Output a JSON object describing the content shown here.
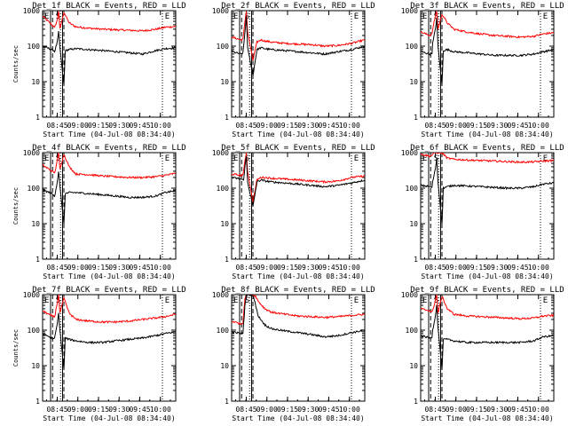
{
  "chart_data": [
    {
      "type": "line",
      "title": "Det_1f BLACK = Events, RED = LLD",
      "ylabel": "Counts/sec",
      "xlabel": "Start Time (04-Jul-08 08:34:40)",
      "yscale": "log",
      "ylim": [
        1,
        1000
      ],
      "y_tick_labels": [
        "1",
        "10",
        "100",
        "1000"
      ],
      "x_tick_labels": [
        "08:45",
        "09:00",
        "09:15",
        "09:30",
        "09:45",
        "10:00"
      ],
      "markers": [
        "E",
        "S",
        "E"
      ],
      "series": [
        {
          "name": "RED",
          "color": "#ff0000",
          "x": [
            0,
            0.07,
            0.085,
            0.09,
            0.11,
            0.12,
            0.13,
            0.16,
            0.2,
            0.25,
            0.35,
            0.45,
            0.55,
            0.65,
            0.75,
            0.85,
            0.92,
            1.0
          ],
          "y": [
            700,
            400,
            350,
            330,
            550,
            1000,
            300,
            900,
            450,
            350,
            320,
            300,
            290,
            280,
            270,
            300,
            340,
            360
          ]
        },
        {
          "name": "BLACK",
          "color": "#000000",
          "x": [
            0,
            0.07,
            0.085,
            0.09,
            0.11,
            0.12,
            0.13,
            0.16,
            0.17,
            0.2,
            0.25,
            0.35,
            0.45,
            0.55,
            0.65,
            0.75,
            0.85,
            0.92,
            1.0
          ],
          "y": [
            100,
            80,
            75,
            70,
            130,
            250,
            90,
            8,
            75,
            80,
            85,
            80,
            75,
            70,
            65,
            60,
            75,
            85,
            90
          ]
        }
      ]
    },
    {
      "type": "line",
      "title": "Det_2f BLACK = Events, RED = LLD",
      "ylabel": "",
      "xlabel": "Start Time (04-Jul-08 08:34:40)",
      "yscale": "log",
      "ylim": [
        1,
        1000
      ],
      "y_tick_labels": [
        "1",
        "10",
        "100",
        "1000"
      ],
      "x_tick_labels": [
        "08:45",
        "09:00",
        "09:15",
        "09:30",
        "09:45",
        "10:00"
      ],
      "markers": [
        "E",
        "S",
        "E"
      ],
      "series": [
        {
          "name": "RED",
          "color": "#ff0000",
          "x": [
            0,
            0.07,
            0.085,
            0.09,
            0.1,
            0.11,
            0.12,
            0.16,
            0.19,
            0.22,
            0.25,
            0.3,
            0.4,
            0.5,
            0.6,
            0.7,
            0.8,
            0.9,
            1.0
          ],
          "y": [
            180,
            150,
            160,
            220,
            500,
            1000,
            250,
            40,
            130,
            150,
            140,
            130,
            120,
            115,
            110,
            100,
            105,
            120,
            150
          ]
        },
        {
          "name": "BLACK",
          "color": "#000000",
          "x": [
            0,
            0.07,
            0.085,
            0.09,
            0.1,
            0.11,
            0.12,
            0.16,
            0.19,
            0.22,
            0.25,
            0.3,
            0.4,
            0.5,
            0.6,
            0.7,
            0.8,
            0.9,
            1.0
          ],
          "y": [
            70,
            60,
            65,
            100,
            250,
            700,
            90,
            15,
            80,
            90,
            85,
            80,
            75,
            70,
            65,
            60,
            70,
            80,
            100
          ]
        }
      ]
    },
    {
      "type": "line",
      "title": "Det_3f BLACK = Events, RED = LLD",
      "ylabel": "",
      "xlabel": "Start Time (04-Jul-08 08:34:40)",
      "yscale": "log",
      "ylim": [
        1,
        1000
      ],
      "y_tick_labels": [
        "1",
        "10",
        "100",
        "1000"
      ],
      "x_tick_labels": [
        "08:45",
        "09:00",
        "09:15",
        "09:30",
        "09:45",
        "10:00"
      ],
      "markers": [
        "E",
        "S",
        "E"
      ],
      "series": [
        {
          "name": "RED",
          "color": "#ff0000",
          "x": [
            0,
            0.07,
            0.085,
            0.09,
            0.11,
            0.12,
            0.13,
            0.16,
            0.2,
            0.25,
            0.35,
            0.45,
            0.55,
            0.65,
            0.75,
            0.85,
            0.92,
            1.0
          ],
          "y": [
            250,
            200,
            220,
            300,
            700,
            1000,
            300,
            800,
            450,
            300,
            250,
            220,
            200,
            190,
            180,
            190,
            220,
            240
          ]
        },
        {
          "name": "BLACK",
          "color": "#000000",
          "x": [
            0,
            0.07,
            0.085,
            0.09,
            0.11,
            0.12,
            0.13,
            0.16,
            0.17,
            0.2,
            0.25,
            0.35,
            0.45,
            0.55,
            0.65,
            0.75,
            0.85,
            0.92,
            1.0
          ],
          "y": [
            70,
            60,
            65,
            120,
            300,
            600,
            100,
            8,
            75,
            80,
            70,
            65,
            60,
            55,
            55,
            55,
            60,
            70,
            80
          ]
        }
      ]
    },
    {
      "type": "line",
      "title": "Det_4f BLACK = Events, RED = LLD",
      "ylabel": "Counts/sec",
      "xlabel": "Start Time (04-Jul-08 08:34:40)",
      "yscale": "log",
      "ylim": [
        1,
        1000
      ],
      "y_tick_labels": [
        "1",
        "10",
        "100",
        "1000"
      ],
      "x_tick_labels": [
        "08:45",
        "09:00",
        "09:15",
        "09:30",
        "09:45",
        "10:00"
      ],
      "markers": [
        "E",
        "S",
        "E"
      ],
      "series": [
        {
          "name": "RED",
          "color": "#ff0000",
          "x": [
            0,
            0.07,
            0.085,
            0.09,
            0.11,
            0.12,
            0.13,
            0.16,
            0.2,
            0.25,
            0.35,
            0.45,
            0.55,
            0.65,
            0.75,
            0.85,
            0.92,
            1.0
          ],
          "y": [
            450,
            300,
            280,
            260,
            600,
            1000,
            350,
            900,
            400,
            250,
            240,
            220,
            210,
            200,
            200,
            210,
            230,
            260
          ]
        },
        {
          "name": "BLACK",
          "color": "#000000",
          "x": [
            0,
            0.07,
            0.085,
            0.09,
            0.11,
            0.12,
            0.13,
            0.16,
            0.17,
            0.2,
            0.25,
            0.35,
            0.45,
            0.55,
            0.65,
            0.75,
            0.85,
            0.92,
            1.0
          ],
          "y": [
            90,
            70,
            60,
            60,
            150,
            300,
            110,
            10,
            70,
            75,
            75,
            70,
            65,
            60,
            55,
            55,
            60,
            75,
            85
          ]
        }
      ]
    },
    {
      "type": "line",
      "title": "Det_5f BLACK = Events, RED = LLD",
      "ylabel": "",
      "xlabel": "Start Time (04-Jul-08 08:34:40)",
      "yscale": "log",
      "ylim": [
        1,
        1000
      ],
      "y_tick_labels": [
        "1",
        "10",
        "100",
        "1000"
      ],
      "x_tick_labels": [
        "08:45",
        "09:00",
        "09:15",
        "09:30",
        "09:45",
        "10:00"
      ],
      "markers": [
        "E",
        "S",
        "E"
      ],
      "series": [
        {
          "name": "RED",
          "color": "#ff0000",
          "x": [
            0,
            0.07,
            0.085,
            0.09,
            0.1,
            0.11,
            0.12,
            0.16,
            0.19,
            0.22,
            0.25,
            0.3,
            0.4,
            0.5,
            0.6,
            0.7,
            0.8,
            0.9,
            1.0
          ],
          "y": [
            250,
            230,
            240,
            300,
            600,
            1000,
            300,
            40,
            170,
            200,
            200,
            190,
            180,
            170,
            160,
            150,
            160,
            200,
            220
          ]
        },
        {
          "name": "BLACK",
          "color": "#000000",
          "x": [
            0,
            0.07,
            0.085,
            0.09,
            0.1,
            0.11,
            0.12,
            0.16,
            0.19,
            0.22,
            0.25,
            0.3,
            0.4,
            0.5,
            0.6,
            0.7,
            0.8,
            0.9,
            1.0
          ],
          "y": [
            200,
            180,
            170,
            180,
            400,
            800,
            150,
            30,
            150,
            170,
            160,
            150,
            140,
            130,
            120,
            110,
            120,
            140,
            170
          ]
        }
      ]
    },
    {
      "type": "line",
      "title": "Det_6f BLACK = Events, RED = LLD",
      "ylabel": "",
      "xlabel": "Start Time (04-Jul-08 08:34:40)",
      "yscale": "log",
      "ylim": [
        1,
        1000
      ],
      "y_tick_labels": [
        "1",
        "10",
        "100",
        "1000"
      ],
      "x_tick_labels": [
        "08:45",
        "09:00",
        "09:15",
        "09:30",
        "09:45",
        "10:00"
      ],
      "markers": [
        "E",
        "S",
        "E"
      ],
      "series": [
        {
          "name": "RED",
          "color": "#ff0000",
          "x": [
            0,
            0.07,
            0.085,
            0.09,
            0.11,
            0.12,
            0.13,
            0.16,
            0.2,
            0.25,
            0.35,
            0.45,
            0.55,
            0.65,
            0.75,
            0.85,
            0.92,
            1.0
          ],
          "y": [
            900,
            800,
            850,
            900,
            1000,
            1000,
            1000,
            1000,
            700,
            650,
            620,
            600,
            580,
            560,
            540,
            550,
            580,
            600
          ]
        },
        {
          "name": "BLACK",
          "color": "#000000",
          "x": [
            0,
            0.07,
            0.085,
            0.09,
            0.11,
            0.12,
            0.13,
            0.16,
            0.17,
            0.2,
            0.25,
            0.35,
            0.45,
            0.55,
            0.65,
            0.75,
            0.85,
            0.92,
            1.0
          ],
          "y": [
            120,
            110,
            105,
            150,
            350,
            700,
            150,
            10,
            100,
            110,
            120,
            115,
            110,
            105,
            100,
            100,
            110,
            130,
            140
          ]
        }
      ]
    },
    {
      "type": "line",
      "title": "Det_7f BLACK = Events, RED = LLD",
      "ylabel": "Counts/sec",
      "xlabel": "Start Time (04-Jul-08 08:34:40)",
      "yscale": "log",
      "ylim": [
        1,
        1000
      ],
      "y_tick_labels": [
        "1",
        "10",
        "100",
        "1000"
      ],
      "x_tick_labels": [
        "08:45",
        "09:00",
        "09:15",
        "09:30",
        "09:45",
        "10:00"
      ],
      "markers": [
        "E",
        "S",
        "E"
      ],
      "series": [
        {
          "name": "RED",
          "color": "#ff0000",
          "x": [
            0,
            0.07,
            0.085,
            0.09,
            0.11,
            0.12,
            0.13,
            0.16,
            0.2,
            0.25,
            0.35,
            0.45,
            0.55,
            0.65,
            0.75,
            0.85,
            0.92,
            1.0
          ],
          "y": [
            350,
            250,
            240,
            230,
            600,
            1000,
            300,
            800,
            300,
            200,
            180,
            170,
            170,
            180,
            200,
            220,
            240,
            280
          ]
        },
        {
          "name": "BLACK",
          "color": "#000000",
          "x": [
            0,
            0.07,
            0.085,
            0.09,
            0.11,
            0.12,
            0.13,
            0.16,
            0.17,
            0.2,
            0.25,
            0.35,
            0.45,
            0.55,
            0.65,
            0.75,
            0.85,
            0.92,
            1.0
          ],
          "y": [
            80,
            60,
            55,
            60,
            150,
            300,
            100,
            8,
            60,
            55,
            50,
            45,
            45,
            50,
            55,
            60,
            70,
            80,
            90
          ]
        }
      ]
    },
    {
      "type": "line",
      "title": "Det_8f BLACK = Events, RED = LLD",
      "ylabel": "",
      "xlabel": "Start Time (04-Jul-08 08:34:40)",
      "yscale": "log",
      "ylim": [
        1,
        1000
      ],
      "y_tick_labels": [
        "1",
        "10",
        "100",
        "1000"
      ],
      "x_tick_labels": [
        "08:45",
        "09:00",
        "09:15",
        "09:30",
        "09:45",
        "10:00"
      ],
      "markers": [
        "E",
        "S",
        "E"
      ],
      "series": [
        {
          "name": "RED",
          "color": "#ff0000",
          "x": [
            0,
            0.07,
            0.085,
            0.09,
            0.1,
            0.11,
            0.12,
            0.16,
            0.18,
            0.2,
            0.25,
            0.3,
            0.4,
            0.5,
            0.6,
            0.7,
            0.8,
            0.9,
            1.0
          ],
          "y": [
            180,
            150,
            160,
            300,
            800,
            1000,
            1000,
            1000,
            900,
            650,
            400,
            320,
            280,
            250,
            240,
            230,
            240,
            260,
            280
          ]
        },
        {
          "name": "BLACK",
          "color": "#000000",
          "x": [
            0,
            0.07,
            0.085,
            0.09,
            0.1,
            0.11,
            0.12,
            0.16,
            0.18,
            0.2,
            0.25,
            0.3,
            0.4,
            0.5,
            0.6,
            0.7,
            0.8,
            0.9,
            1.0
          ],
          "y": [
            90,
            80,
            85,
            150,
            500,
            1000,
            1000,
            1000,
            500,
            250,
            140,
            110,
            95,
            85,
            75,
            65,
            70,
            85,
            100
          ]
        }
      ]
    },
    {
      "type": "line",
      "title": "Det_9f BLACK = Events, RED = LLD",
      "ylabel": "",
      "xlabel": "Start Time (04-Jul-08 08:34:40)",
      "yscale": "log",
      "ylim": [
        1,
        1000
      ],
      "y_tick_labels": [
        "1",
        "10",
        "100",
        "1000"
      ],
      "x_tick_labels": [
        "08:45",
        "09:00",
        "09:15",
        "09:30",
        "09:45",
        "10:00"
      ],
      "markers": [
        "E",
        "S",
        "E"
      ],
      "series": [
        {
          "name": "RED",
          "color": "#ff0000",
          "x": [
            0,
            0.07,
            0.085,
            0.09,
            0.11,
            0.12,
            0.13,
            0.16,
            0.2,
            0.25,
            0.35,
            0.45,
            0.55,
            0.65,
            0.75,
            0.85,
            0.92,
            1.0
          ],
          "y": [
            400,
            350,
            320,
            350,
            700,
            1000,
            300,
            900,
            400,
            280,
            250,
            240,
            230,
            220,
            210,
            220,
            250,
            260
          ]
        },
        {
          "name": "BLACK",
          "color": "#000000",
          "x": [
            0,
            0.07,
            0.085,
            0.09,
            0.11,
            0.12,
            0.13,
            0.16,
            0.17,
            0.2,
            0.25,
            0.35,
            0.45,
            0.55,
            0.65,
            0.75,
            0.85,
            0.92,
            1.0
          ],
          "y": [
            70,
            60,
            65,
            100,
            250,
            500,
            120,
            8,
            55,
            55,
            50,
            45,
            45,
            45,
            45,
            45,
            50,
            65,
            70
          ]
        }
      ]
    }
  ]
}
